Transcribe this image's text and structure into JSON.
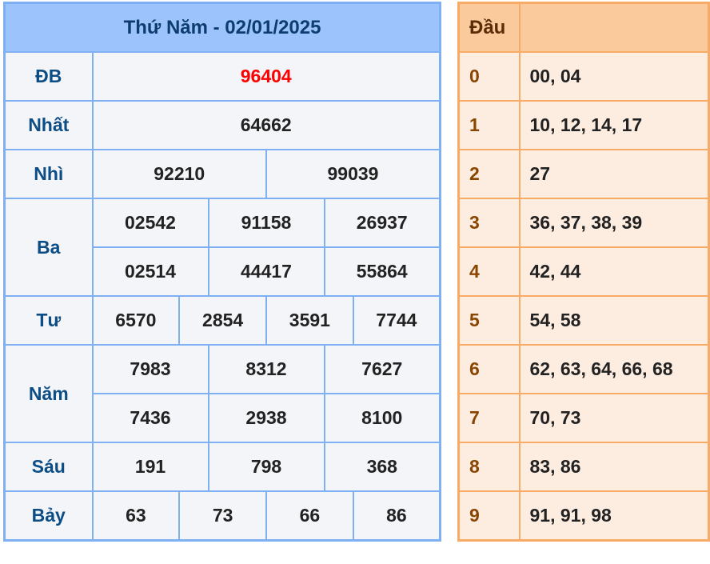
{
  "results": {
    "title": "Thứ Năm - 02/01/2025",
    "rows": [
      {
        "label": "ĐB",
        "values": [
          "96404"
        ]
      },
      {
        "label": "Nhất",
        "values": [
          "64662"
        ]
      },
      {
        "label": "Nhì",
        "values": [
          "92210",
          "99039"
        ]
      },
      {
        "label": "Ba",
        "values": [
          "02542",
          "91158",
          "26937",
          "02514",
          "44417",
          "55864"
        ]
      },
      {
        "label": "Tư",
        "values": [
          "6570",
          "2854",
          "3591",
          "7744"
        ]
      },
      {
        "label": "Năm",
        "values": [
          "7983",
          "8312",
          "7627",
          "7436",
          "2938",
          "8100"
        ]
      },
      {
        "label": "Sáu",
        "values": [
          "191",
          "798",
          "368"
        ]
      },
      {
        "label": "Bảy",
        "values": [
          "63",
          "73",
          "66",
          "86"
        ]
      }
    ]
  },
  "dau": {
    "header": "Đầu",
    "rows": [
      {
        "digit": "0",
        "tails": "00, 04"
      },
      {
        "digit": "1",
        "tails": "10, 12, 14, 17"
      },
      {
        "digit": "2",
        "tails": "27"
      },
      {
        "digit": "3",
        "tails": "36, 37, 38, 39"
      },
      {
        "digit": "4",
        "tails": "42, 44"
      },
      {
        "digit": "5",
        "tails": "54, 58"
      },
      {
        "digit": "6",
        "tails": "62, 63, 64, 66, 68"
      },
      {
        "digit": "7",
        "tails": "70, 73"
      },
      {
        "digit": "8",
        "tails": "83, 86"
      },
      {
        "digit": "9",
        "tails": "91, 91, 98"
      }
    ]
  },
  "colors": {
    "special_prize": "#ff0000",
    "blue_border": "#7eb0f2",
    "orange_border": "#f8ab66"
  }
}
